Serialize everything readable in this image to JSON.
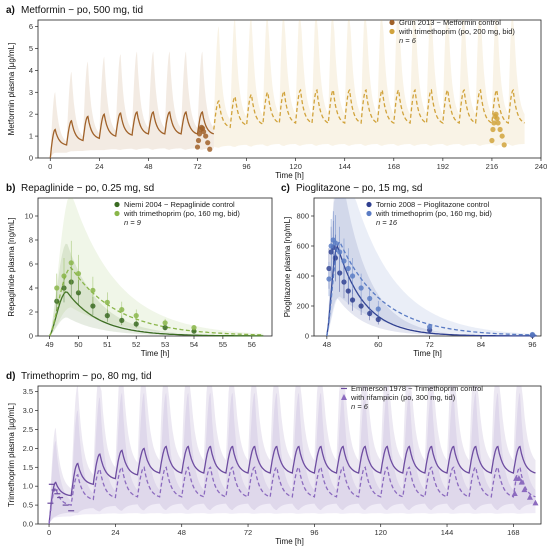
{
  "chart_data": [
    {
      "panel": "a)",
      "title": "Metformin − po, 500 mg, tid",
      "type": "line",
      "xlabel": "Time [h]",
      "ylabel": "Metformin plasma [µg/mL]",
      "xlim": [
        -6,
        240
      ],
      "ylim": [
        0,
        6.3
      ],
      "xticks": [
        0,
        24,
        48,
        72,
        96,
        120,
        144,
        168,
        192,
        216,
        240
      ],
      "yticks": [
        0,
        1,
        2,
        3,
        4,
        5,
        6
      ],
      "legend_position": "top-right",
      "legend": [
        "Grün 2013 − Metformin control",
        "with trimethoprim (po, 200 mg, bid)"
      ],
      "legend_note": "n = 6",
      "series": [
        {
          "name": "Grün 2013 − Metformin control",
          "color": "#a0622a",
          "dose_times": [
            0,
            8,
            16,
            24,
            32,
            40,
            48,
            56,
            64,
            72
          ],
          "troughs": [
            0,
            0.6,
            0.8,
            0.9,
            1.0,
            1.05,
            1.1,
            1.1,
            1.1,
            1.1
          ],
          "peaks": [
            1.3,
            1.7,
            1.9,
            2.0,
            2.05,
            2.1,
            2.1,
            2.1,
            2.1,
            2.1
          ],
          "observed_x": [
            72,
            72.5,
            73,
            73.5,
            74,
            74.5,
            75,
            76,
            77,
            78
          ],
          "observed_y": [
            0.5,
            0.8,
            1.1,
            1.3,
            1.4,
            1.35,
            1.2,
            1.0,
            0.7,
            0.4
          ]
        },
        {
          "name": "with trimethoprim (po, 200 mg, bid)",
          "color": "#d1a33c",
          "dose_times": [
            80,
            88,
            96,
            104,
            112,
            120,
            128,
            136,
            144,
            152,
            160,
            168,
            176,
            184,
            192,
            200,
            208,
            216,
            224
          ],
          "troughs": [
            1.3,
            1.4,
            1.5,
            1.55,
            1.6,
            1.6,
            1.6,
            1.6,
            1.6,
            1.6,
            1.6,
            1.6,
            1.6,
            1.6,
            1.6,
            1.6,
            1.6,
            1.6,
            1.6
          ],
          "peaks": [
            2.6,
            2.8,
            2.9,
            3.0,
            3.05,
            3.1,
            3.1,
            3.1,
            3.1,
            3.1,
            3.1,
            3.1,
            3.1,
            3.1,
            3.1,
            3.1,
            3.1,
            3.1,
            3.1
          ],
          "observed_x": [
            216,
            216.5,
            217,
            217.5,
            218,
            218.5,
            219,
            220,
            221,
            222
          ],
          "observed_y": [
            0.8,
            1.3,
            1.6,
            1.9,
            2.0,
            1.8,
            1.6,
            1.3,
            1.0,
            0.6
          ]
        }
      ]
    },
    {
      "panel": "b)",
      "title": "Repaglinide − po, 0.25 mg, sd",
      "type": "line",
      "xlabel": "Time [h]",
      "ylabel": "Repaglinide plasma [ng/mL]",
      "xlim": [
        48.6,
        56.7
      ],
      "ylim": [
        0,
        11.5
      ],
      "xticks": [
        49,
        50,
        51,
        52,
        53,
        54,
        55,
        56
      ],
      "yticks": [
        0,
        2,
        4,
        6,
        8,
        10
      ],
      "legend_position": "top-right",
      "legend": [
        "Niemi 2004 − Repaglinide control",
        "with trimethoprim (po, 160 mg, bid)"
      ],
      "legend_note": "n = 9",
      "series": [
        {
          "name": "Niemi 2004 − Repaglinide control",
          "color": "#3a6b22",
          "tmax": 49.6,
          "cmax": 3.7,
          "k": 0.9,
          "observed_x": [
            49.25,
            49.5,
            49.75,
            50,
            50.5,
            51,
            51.5,
            52,
            53,
            54
          ],
          "observed_y": [
            2.9,
            4.0,
            4.5,
            3.6,
            2.5,
            1.7,
            1.3,
            1.0,
            0.7,
            0.4
          ]
        },
        {
          "name": "with trimethoprim (po, 160 mg, bid)",
          "color": "#8ab64a",
          "tmax": 49.75,
          "cmax": 5.7,
          "k": 0.62,
          "observed_x": [
            49.25,
            49.5,
            49.75,
            50,
            50.5,
            51,
            51.5,
            52,
            53,
            54
          ],
          "observed_y": [
            4.0,
            5.0,
            6.1,
            5.2,
            3.8,
            2.8,
            2.2,
            1.7,
            1.1,
            0.7
          ]
        }
      ]
    },
    {
      "panel": "c)",
      "title": "Pioglitazone − po, 15 mg, sd",
      "type": "line",
      "xlabel": "Time [h]",
      "ylabel": "Pioglitazone plasma [ng/mL]",
      "xlim": [
        45,
        98
      ],
      "ylim": [
        0,
        920
      ],
      "xticks": [
        48,
        60,
        72,
        84,
        96
      ],
      "yticks": [
        0,
        200,
        400,
        600,
        800
      ],
      "legend_position": "top-right",
      "legend": [
        "Tornio 2008 − Pioglitazone control",
        "with trimethoprim (po, 160 mg, bid)"
      ],
      "legend_note": "n = 16",
      "series": [
        {
          "name": "Tornio 2008 − Pioglitazone control",
          "color": "#2f3f8f",
          "tmax": 50.5,
          "cmax": 600,
          "k": 0.16,
          "observed_x": [
            48.5,
            49,
            49.5,
            50,
            51,
            52,
            53,
            54,
            56,
            58,
            60,
            72,
            96
          ],
          "observed_y": [
            450,
            560,
            590,
            520,
            420,
            360,
            300,
            240,
            200,
            150,
            110,
            40,
            5
          ]
        },
        {
          "name": "with trimethoprim (po, 160 mg, bid)",
          "color": "#5b7cc4",
          "tmax": 51,
          "cmax": 630,
          "k": 0.1,
          "observed_x": [
            48.5,
            49,
            49.5,
            50,
            51,
            52,
            53,
            54,
            56,
            58,
            60,
            72,
            96
          ],
          "observed_y": [
            380,
            600,
            640,
            620,
            560,
            500,
            450,
            400,
            320,
            250,
            180,
            60,
            10
          ]
        }
      ]
    },
    {
      "panel": "d)",
      "title": "Trimethoprim − po, 80 mg, tid",
      "type": "line",
      "xlabel": "Time [h]",
      "ylabel": "Trimethoprim plasma [µg/mL]",
      "xlim": [
        -4,
        178
      ],
      "ylim": [
        0,
        3.65
      ],
      "xticks": [
        0,
        24,
        48,
        72,
        96,
        120,
        144,
        168
      ],
      "yticks": [
        0,
        0.5,
        1.0,
        1.5,
        2.0,
        2.5,
        3.0,
        3.5
      ],
      "legend_position": "top-right",
      "legend": [
        "Emmerson 1978 − Trimethoprim control",
        "with rifampicin (po, 300 mg, tid)"
      ],
      "legend_note": "n = 6",
      "series": [
        {
          "name": "Emmerson 1978 − Trimethoprim control",
          "color": "#6b4a9e",
          "dose_times": [
            0,
            8,
            16,
            24,
            32,
            40,
            48,
            56,
            64,
            72,
            80,
            88,
            96,
            104,
            112,
            120,
            128,
            136,
            144,
            152,
            160,
            168
          ],
          "troughs": [
            0,
            0.75,
            1.05,
            1.2,
            1.3,
            1.35,
            1.35,
            1.35,
            1.35,
            1.35,
            1.35,
            1.35,
            1.35,
            1.35,
            1.35,
            1.35,
            1.35,
            1.35,
            1.35,
            1.35,
            1.35,
            1.35
          ],
          "peaks": [
            1.1,
            1.6,
            1.85,
            1.95,
            2.0,
            2.05,
            2.05,
            2.05,
            2.05,
            2.05,
            2.05,
            2.05,
            2.05,
            2.05,
            2.05,
            2.05,
            2.05,
            2.05,
            2.05,
            2.05,
            2.05,
            2.05
          ],
          "observed_x": [
            0.5,
            1,
            2,
            3,
            4,
            6,
            8
          ],
          "observed_y": [
            0.55,
            1.05,
            0.9,
            0.8,
            0.7,
            0.5,
            0.35
          ]
        },
        {
          "name": "with rifampicin (po, 300 mg, tid)",
          "color": "#8c6bbf",
          "dose_times": [
            0,
            8,
            16,
            24,
            32,
            40,
            48,
            56,
            64,
            72,
            80,
            88,
            96,
            104,
            112,
            120,
            128,
            136,
            144,
            152,
            160,
            168
          ],
          "troughs": [
            0,
            0.5,
            0.65,
            0.7,
            0.72,
            0.72,
            0.72,
            0.72,
            0.72,
            0.72,
            0.72,
            0.72,
            0.72,
            0.72,
            0.72,
            0.72,
            0.72,
            0.72,
            0.72,
            0.72,
            0.72,
            0.72
          ],
          "peaks": [
            0.95,
            1.3,
            1.45,
            1.5,
            1.5,
            1.5,
            1.5,
            1.5,
            1.5,
            1.5,
            1.5,
            1.5,
            1.5,
            1.5,
            1.5,
            1.5,
            1.5,
            1.5,
            1.5,
            1.5,
            1.5,
            1.5
          ],
          "observed_x": [
            168.5,
            169,
            170,
            171,
            172,
            174,
            176
          ],
          "observed_y": [
            0.8,
            1.2,
            1.2,
            1.1,
            0.9,
            0.7,
            0.55
          ]
        }
      ]
    }
  ]
}
